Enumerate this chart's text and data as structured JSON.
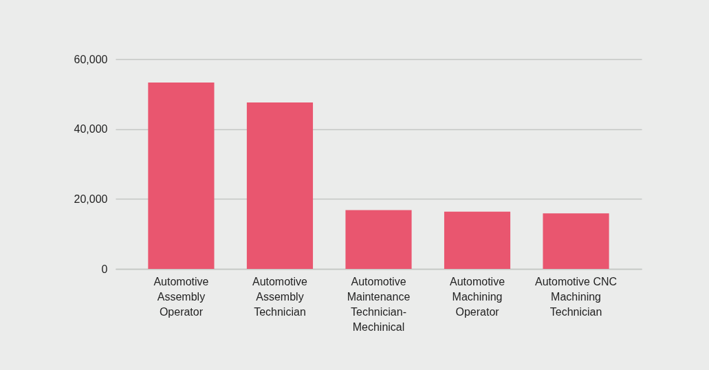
{
  "chart_data": {
    "type": "bar",
    "categories": [
      "Automotive Assembly Operator",
      "Automotive Assembly Technician",
      "Automotive Maintenance Technician-Mechinical",
      "Automotive Machining Operator",
      "Automotive CNC Machining Technician"
    ],
    "values": [
      53300,
      47600,
      16800,
      16400,
      15900
    ],
    "color": "#e9566f",
    "ylim": [
      0,
      60000
    ],
    "yticks": [
      {
        "value": 0,
        "label": "0"
      },
      {
        "value": 20000,
        "label": "20,000"
      },
      {
        "value": 40000,
        "label": "40,000"
      },
      {
        "value": 60000,
        "label": "60,000"
      }
    ],
    "grid": "y"
  }
}
